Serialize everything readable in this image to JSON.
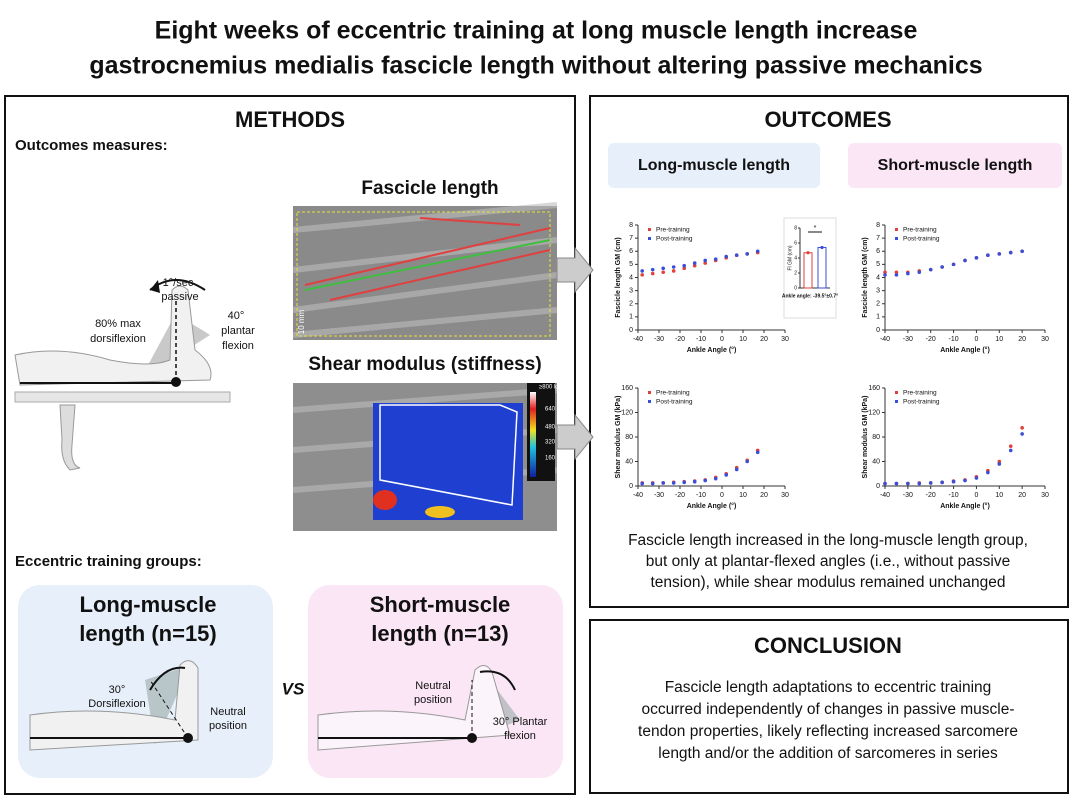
{
  "header": {
    "title_lines": [
      "Eight weeks of eccentric training at long muscle length increase",
      "gastrocnemius medialis fascicle length without altering passive mechanics"
    ]
  },
  "methods": {
    "title": "METHODS",
    "outcomes_label": "Outcomes measures:",
    "rig_labels": {
      "speed": "1°/sec",
      "mode": "passive",
      "dorsi_lines": [
        "80% max",
        "dorsiflexion"
      ],
      "plantar_lines": [
        "40°",
        "plantar",
        "flexion"
      ]
    },
    "fascicle_title": "Fascicle length",
    "scale_label": "10 mm",
    "shear_title": "Shear modulus (stiffness)",
    "colorbar_labels": [
      "≥800 kPa",
      "640",
      "480",
      "320",
      "160"
    ],
    "groups_label": "Eccentric training groups:",
    "vs": "VS",
    "groups": [
      {
        "name_lines": [
          "Long-muscle",
          "length (n=15)"
        ],
        "angle_lines": [
          "30°",
          "Dorsiflexion"
        ],
        "neutral_lines": [
          "Neutral",
          "position"
        ]
      },
      {
        "name_lines": [
          "Short-muscle",
          "length (n=13)"
        ],
        "angle_lines": [
          "30° Plantar",
          "flexion"
        ],
        "neutral_lines": [
          "Neutral",
          "position"
        ]
      }
    ]
  },
  "outcomes": {
    "title": "OUTCOMES",
    "groups": [
      "Long-muscle length",
      "Short-muscle length"
    ],
    "charts": [
      {
        "type": "scatter",
        "ylabel": "Fascicle length GM (cm)",
        "xlabel": "Ankle Angle (°)",
        "xlim": [
          -40,
          30
        ],
        "xticks": [
          -40,
          -30,
          -20,
          -10,
          0,
          10,
          20,
          30
        ],
        "ylim": [
          0,
          8
        ],
        "yticks": [
          0,
          1,
          2,
          3,
          4,
          5,
          6,
          7,
          8
        ],
        "x": [
          -38,
          -33,
          -28,
          -23,
          -18,
          -13,
          -8,
          -3,
          2,
          7,
          12,
          17
        ],
        "series": [
          {
            "name": "Pre-training",
            "color": "#e0413a",
            "values": [
              4.2,
              4.3,
              4.4,
              4.5,
              4.7,
              4.9,
              5.1,
              5.3,
              5.5,
              5.7,
              5.8,
              5.9
            ]
          },
          {
            "name": "Post-training",
            "color": "#3a4fd8",
            "values": [
              4.5,
              4.6,
              4.7,
              4.8,
              4.9,
              5.1,
              5.3,
              5.4,
              5.6,
              5.7,
              5.8,
              6.0
            ]
          }
        ],
        "inset": {
          "ylabel": "Fl GM (cm)",
          "note": "Ankle angle: -39.5°±0.7°",
          "sig": "*",
          "ylim": [
            0,
            8
          ],
          "yticks": [
            0,
            2,
            4,
            6,
            8
          ],
          "values": [
            4.7,
            5.4
          ]
        }
      },
      {
        "type": "scatter",
        "ylabel": "Fascicle length GM (cm)",
        "xlabel": "Ankle Angle (°)",
        "xlim": [
          -40,
          30
        ],
        "xticks": [
          -40,
          -30,
          -20,
          -10,
          0,
          10,
          20,
          30
        ],
        "ylim": [
          0,
          8
        ],
        "yticks": [
          0,
          1,
          2,
          3,
          4,
          5,
          6,
          7,
          8
        ],
        "x": [
          -40,
          -35,
          -30,
          -25,
          -20,
          -15,
          -10,
          -5,
          0,
          5,
          10,
          15,
          20
        ],
        "series": [
          {
            "name": "Pre-training",
            "color": "#e0413a",
            "values": [
              4.4,
              4.4,
              4.4,
              4.5,
              4.6,
              4.8,
              5.0,
              5.3,
              5.5,
              5.7,
              5.8,
              5.9,
              6.0
            ]
          },
          {
            "name": "Post-training",
            "color": "#3a4fd8",
            "values": [
              4.2,
              4.2,
              4.3,
              4.4,
              4.6,
              4.8,
              5.0,
              5.3,
              5.5,
              5.7,
              5.8,
              5.9,
              6.0
            ]
          }
        ]
      },
      {
        "type": "scatter",
        "ylabel": "Shear modulus GM (kPa)",
        "xlabel": "Ankle Angle (°)",
        "xlim": [
          -40,
          30
        ],
        "xticks": [
          -40,
          -30,
          -20,
          -10,
          0,
          10,
          20,
          30
        ],
        "ylim": [
          0,
          160
        ],
        "yticks": [
          0,
          40,
          80,
          120,
          160
        ],
        "x": [
          -38,
          -33,
          -28,
          -23,
          -18,
          -13,
          -8,
          -3,
          2,
          7,
          12,
          17
        ],
        "series": [
          {
            "name": "Pre-training",
            "color": "#e0413a",
            "values": [
              5,
              5,
              5,
              6,
              7,
              8,
              10,
              14,
              20,
              30,
              42,
              58
            ]
          },
          {
            "name": "Post-training",
            "color": "#3a4fd8",
            "values": [
              4,
              4,
              5,
              5,
              6,
              7,
              9,
              12,
              18,
              27,
              40,
              55
            ]
          }
        ]
      },
      {
        "type": "scatter",
        "ylabel": "Shear modulus GM (kPa)",
        "xlabel": "Ankle Angle (°)",
        "xlim": [
          -40,
          30
        ],
        "xticks": [
          -40,
          -30,
          -20,
          -10,
          0,
          10,
          20,
          30
        ],
        "ylim": [
          0,
          160
        ],
        "yticks": [
          0,
          40,
          80,
          120,
          160
        ],
        "x": [
          -40,
          -35,
          -30,
          -25,
          -20,
          -15,
          -10,
          -5,
          0,
          5,
          10,
          15,
          20
        ],
        "series": [
          {
            "name": "Pre-training",
            "color": "#e0413a",
            "values": [
              4,
              4,
              4,
              5,
              5,
              6,
              8,
              10,
              15,
              25,
              40,
              65,
              95
            ]
          },
          {
            "name": "Post-training",
            "color": "#3a4fd8",
            "values": [
              4,
              4,
              4,
              4,
              5,
              6,
              7,
              9,
              13,
              22,
              36,
              58,
              85
            ]
          }
        ]
      }
    ],
    "summary_lines": [
      "Fascicle length increased in the long-muscle length group,",
      "but only at plantar-flexed angles (i.e., without passive",
      "tension), while shear modulus remained unchanged"
    ]
  },
  "conclusion": {
    "title": "CONCLUSION",
    "lines": [
      "Fascicle length adaptations to eccentric training",
      "occurred independently of changes in passive muscle-",
      "tendon properties, likely reflecting increased sarcomere",
      "length and/or the addition of sarcomeres in series"
    ]
  }
}
